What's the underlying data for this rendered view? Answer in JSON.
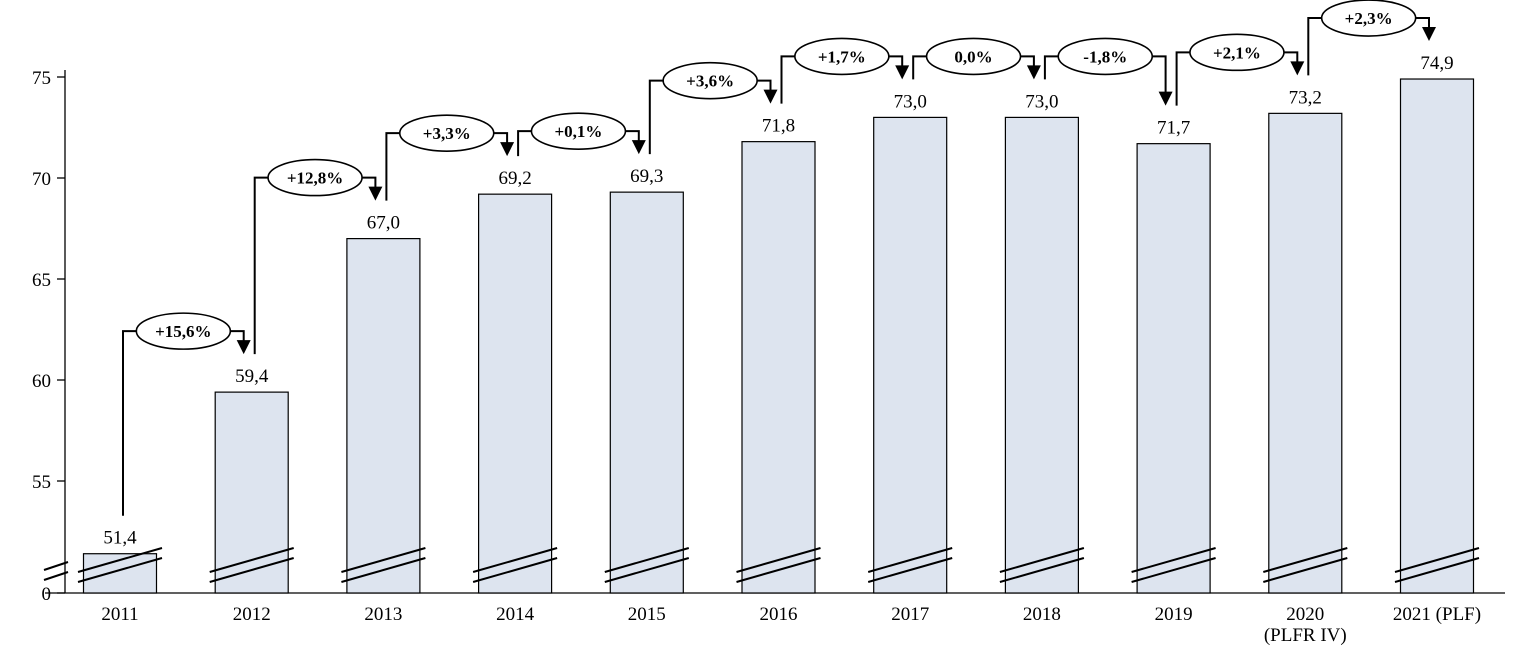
{
  "chart_data": {
    "type": "bar",
    "title": "",
    "xlabel": "",
    "ylabel": "",
    "categories": [
      "2011",
      "2012",
      "2013",
      "2014",
      "2015",
      "2016",
      "2017",
      "2018",
      "2019",
      "2020\n(PLFR IV)",
      "2021 (PLF)"
    ],
    "values": [
      51.4,
      59.4,
      67.0,
      69.2,
      69.3,
      71.8,
      73.0,
      73.0,
      71.7,
      73.2,
      74.9
    ],
    "value_labels": [
      "51,4",
      "59,4",
      "67,0",
      "69,2",
      "69,3",
      "71,8",
      "73,0",
      "73,0",
      "71,7",
      "73,2",
      "74,9"
    ],
    "changes": [
      "+15,6%",
      "+12,8%",
      "+3,3%",
      "+0,1%",
      "+3,6%",
      "+1,7%",
      "0,0%",
      "-1,8%",
      "+2,1%",
      "+2,3%"
    ],
    "yticks": [
      0,
      55,
      60,
      65,
      70,
      75
    ],
    "ytick_labels": [
      "0",
      "55",
      "60",
      "65",
      "70",
      "75"
    ],
    "ylim": [
      0,
      75
    ],
    "axis_break": true,
    "grid": false,
    "bar_color": "#dde4ef"
  }
}
